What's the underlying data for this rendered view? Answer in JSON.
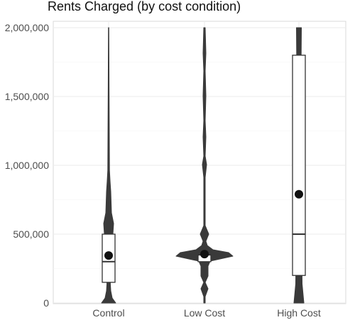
{
  "chart_data": {
    "type": "violin",
    "title": "Rents Charged (by cost condition)",
    "xlabel": "",
    "ylabel": "",
    "categories": [
      "Control",
      "Low Cost",
      "High Cost"
    ],
    "ylim": [
      0,
      2000000
    ],
    "y_ticks": [
      0,
      500000,
      1000000,
      1500000,
      2000000
    ],
    "y_tick_labels": [
      "0",
      "500,000",
      "1,000,000",
      "1,500,000",
      "2,000,000"
    ],
    "grid": true,
    "legend": "none",
    "boxes": [
      {
        "category": "Control",
        "q1": 150000,
        "median": 300000,
        "q3": 500000,
        "mean": 345000,
        "min": 0,
        "max": 2000000
      },
      {
        "category": "Low Cost",
        "q1": 300000,
        "median": 350000,
        "q3": 350000,
        "mean": 355000,
        "min": 0,
        "max": 2000000
      },
      {
        "category": "High Cost",
        "q1": 200000,
        "median": 500000,
        "q3": 1800000,
        "mean": 790000,
        "min": 0,
        "max": 2000000
      }
    ],
    "colors": {
      "outline": "#333333",
      "fill": "#ffffff",
      "mean": "#111111",
      "grid": "#ebebeb",
      "panel_border": "#d9d9d9"
    }
  }
}
